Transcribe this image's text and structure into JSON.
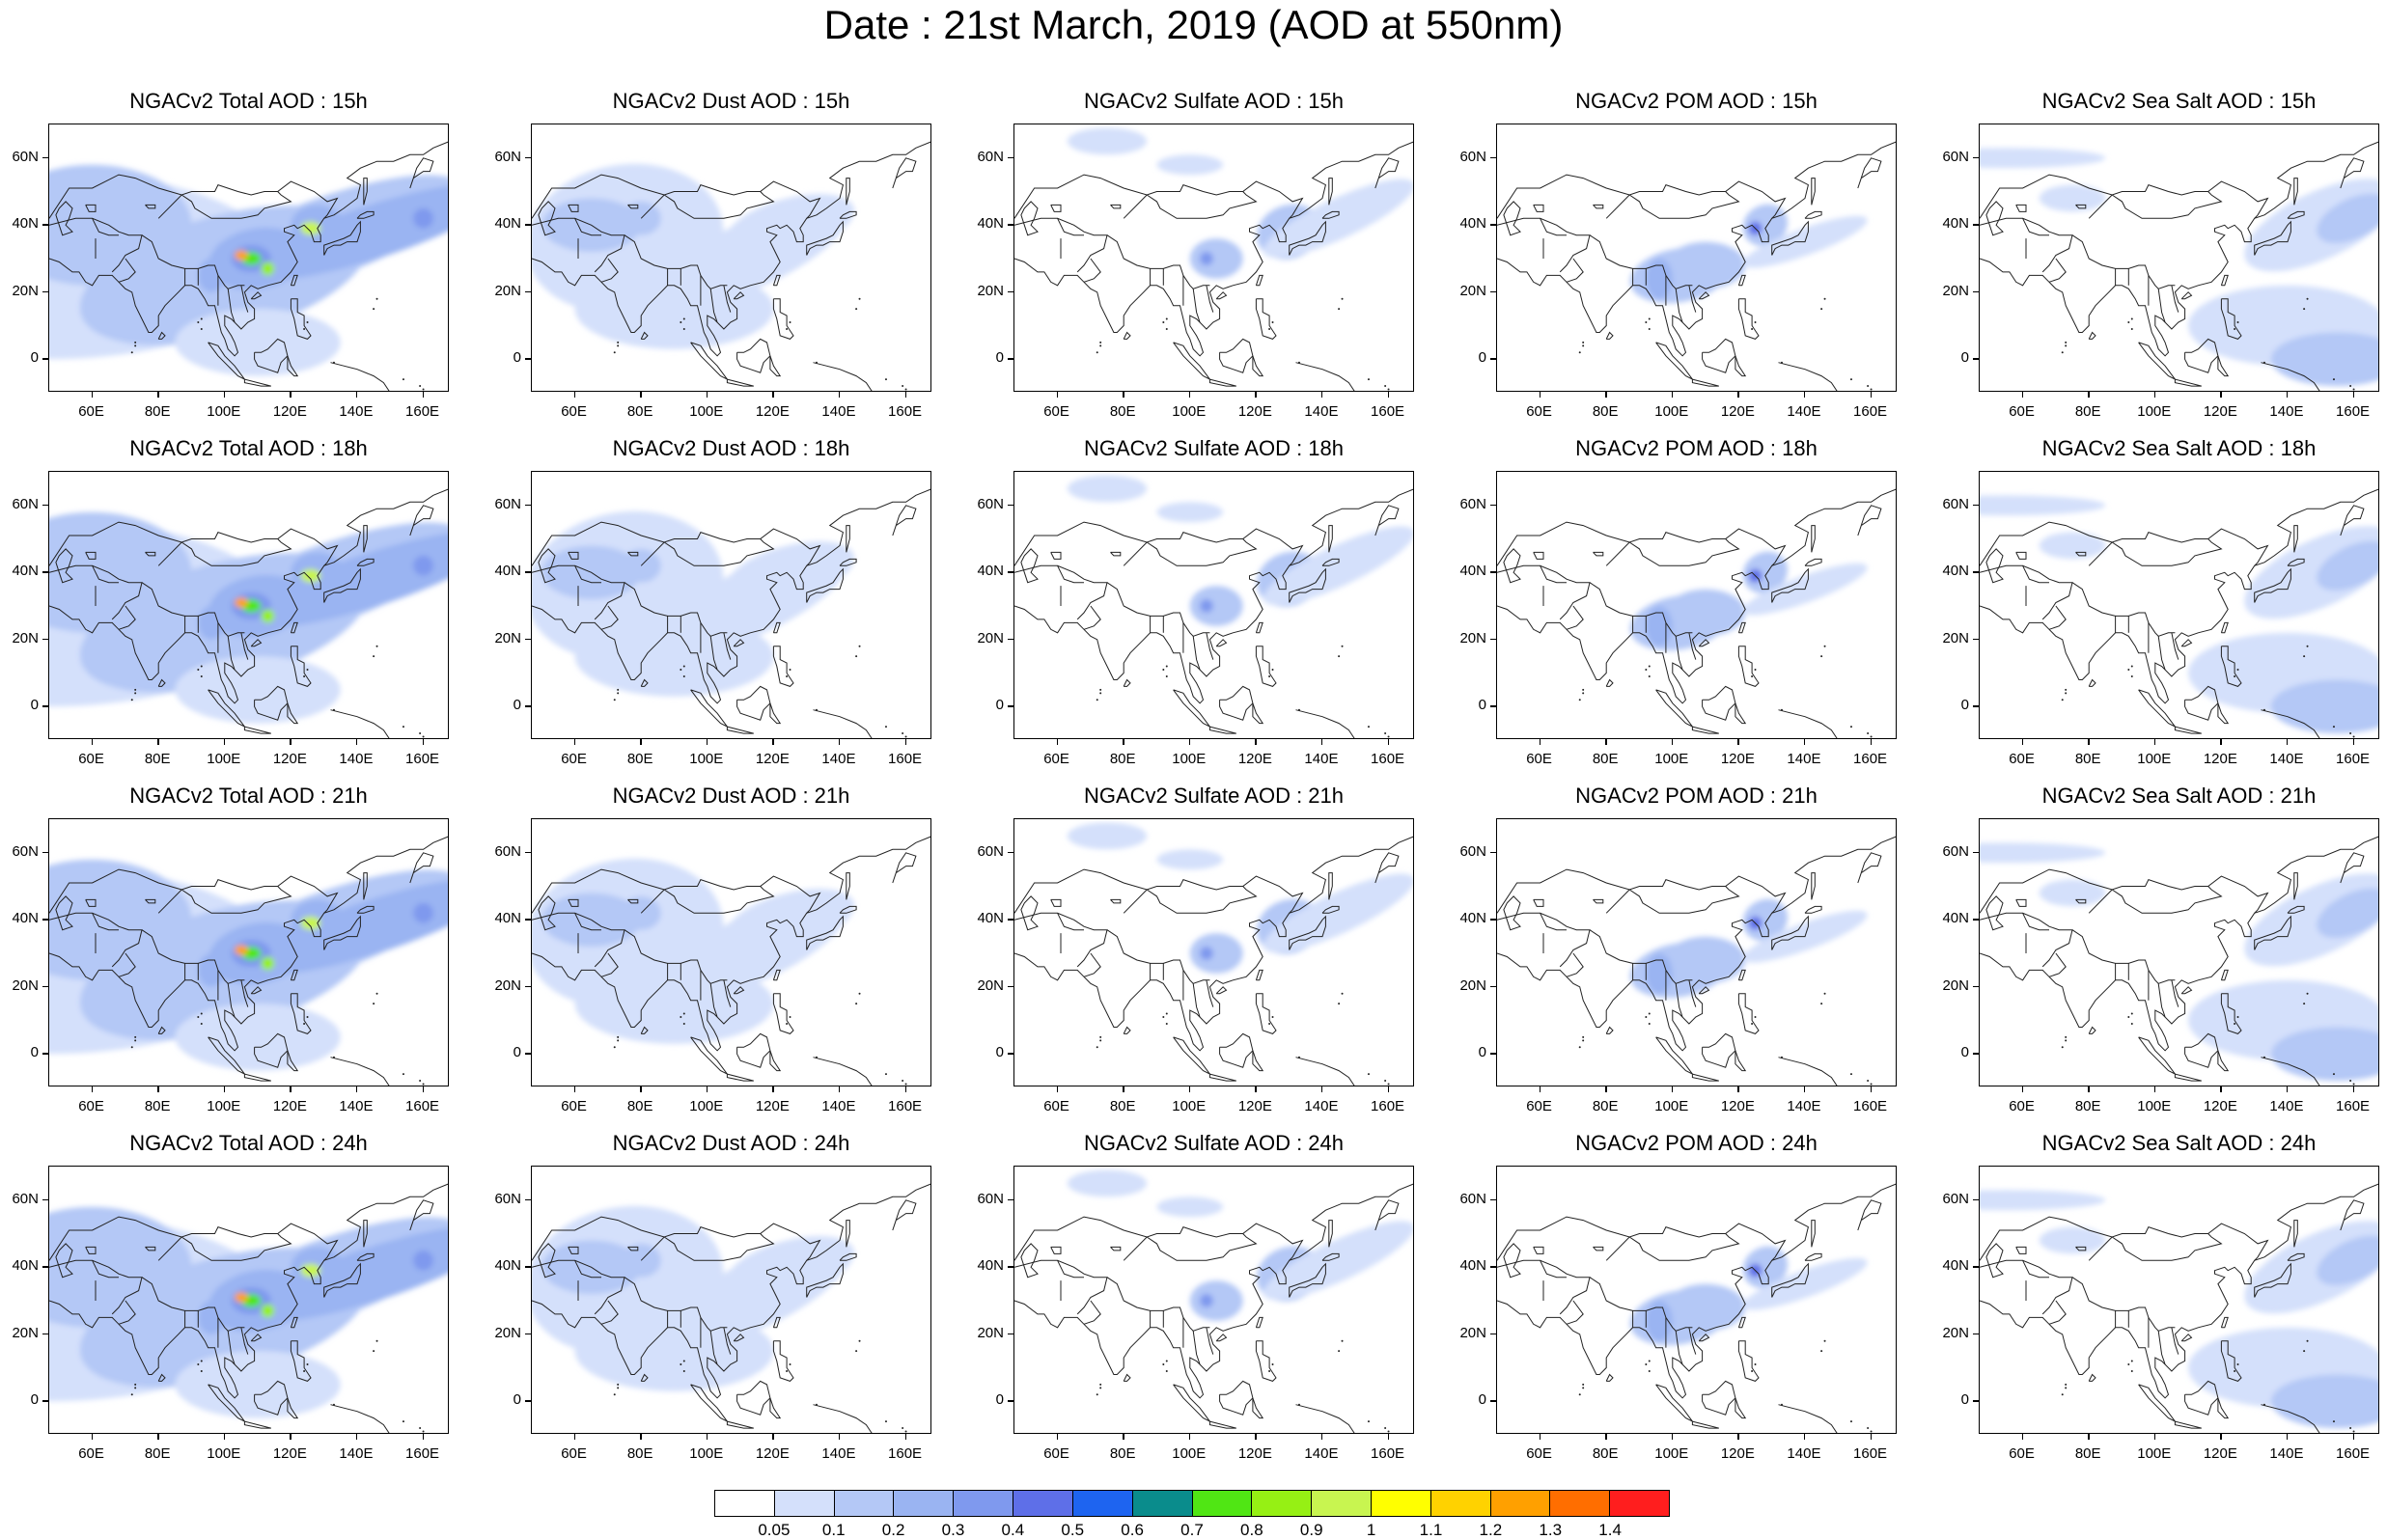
{
  "title": "Date : 21st March, 2019 (AOD at 550nm)",
  "lat_labels": [
    "60N",
    "40N",
    "20N",
    "0"
  ],
  "lon_labels": [
    "60E",
    "80E",
    "100E",
    "120E",
    "140E",
    "160E"
  ],
  "colorbar": {
    "labels": [
      "0.05",
      "0.1",
      "0.2",
      "0.3",
      "0.4",
      "0.5",
      "0.6",
      "0.7",
      "0.8",
      "0.9",
      "1",
      "1.1",
      "1.2",
      "1.3",
      "1.4"
    ],
    "colors": [
      "#ffffff",
      "#d4e0fb",
      "#b4c8f6",
      "#9ab4f2",
      "#7f99ee",
      "#5e6fe8",
      "#1e64f0",
      "#0a8c8c",
      "#50e614",
      "#96f014",
      "#c8f550",
      "#ffff00",
      "#ffd200",
      "#ffa000",
      "#ff6e00",
      "#ff1e1e"
    ]
  },
  "panels": [
    {
      "title": "NGACv2 Total AOD : 15h",
      "kind": "total"
    },
    {
      "title": "NGACv2 Dust AOD : 15h",
      "kind": "dust"
    },
    {
      "title": "NGACv2 Sulfate AOD : 15h",
      "kind": "sulfate"
    },
    {
      "title": "NGACv2 POM AOD : 15h",
      "kind": "pom"
    },
    {
      "title": "NGACv2 Sea Salt AOD : 15h",
      "kind": "seasalt"
    },
    {
      "title": "NGACv2 Total AOD : 18h",
      "kind": "total"
    },
    {
      "title": "NGACv2 Dust AOD : 18h",
      "kind": "dust"
    },
    {
      "title": "NGACv2 Sulfate AOD : 18h",
      "kind": "sulfate"
    },
    {
      "title": "NGACv2 POM AOD : 18h",
      "kind": "pom"
    },
    {
      "title": "NGACv2 Sea Salt AOD : 18h",
      "kind": "seasalt"
    },
    {
      "title": "NGACv2 Total AOD : 21h",
      "kind": "total"
    },
    {
      "title": "NGACv2 Dust AOD : 21h",
      "kind": "dust"
    },
    {
      "title": "NGACv2 Sulfate AOD : 21h",
      "kind": "sulfate"
    },
    {
      "title": "NGACv2 POM AOD : 21h",
      "kind": "pom"
    },
    {
      "title": "NGACv2 Sea Salt AOD : 21h",
      "kind": "seasalt"
    },
    {
      "title": "NGACv2 Total AOD : 24h",
      "kind": "total"
    },
    {
      "title": "NGACv2 Dust AOD : 24h",
      "kind": "dust"
    },
    {
      "title": "NGACv2 Sulfate AOD : 24h",
      "kind": "sulfate"
    },
    {
      "title": "NGACv2 POM AOD : 24h",
      "kind": "pom"
    },
    {
      "title": "NGACv2 Sea Salt  AOD : 24h",
      "kind": "seasalt"
    }
  ]
}
